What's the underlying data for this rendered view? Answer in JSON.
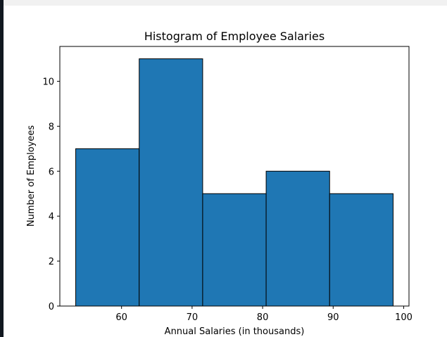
{
  "chart_data": {
    "type": "bar",
    "title": "Histogram of Employee Salaries",
    "xlabel": "Annual Salaries (in thousands)",
    "ylabel": "Number of Employees",
    "bin_edges": [
      53.5,
      62.5,
      71.5,
      80.5,
      89.5,
      98.5
    ],
    "values": [
      7,
      11,
      5,
      6,
      5
    ],
    "xlim": [
      51.25,
      100.75
    ],
    "ylim": [
      0,
      11.55
    ],
    "x_ticks": [
      60,
      70,
      80,
      90,
      100
    ],
    "y_ticks": [
      0,
      2,
      4,
      6,
      8,
      10
    ],
    "bar_color": "#1f77b4",
    "edge_color": "#000000",
    "grid": false
  }
}
